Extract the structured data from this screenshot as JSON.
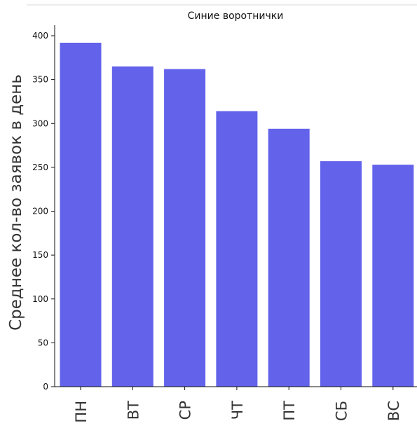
{
  "chart_data": {
    "type": "bar",
    "title": "Синие воротнички",
    "xlabel": "",
    "ylabel": "Среднее кол-во заявок в день",
    "categories": [
      "ПН",
      "ВТ",
      "СР",
      "ЧТ",
      "ПТ",
      "СБ",
      "ВС"
    ],
    "values": [
      392,
      365,
      362,
      314,
      294,
      257,
      253
    ],
    "ylim": [
      0,
      400
    ],
    "yticks": [
      0,
      50,
      100,
      150,
      200,
      250,
      300,
      350,
      400
    ],
    "bar_color": "#6262eb",
    "grid": false
  }
}
